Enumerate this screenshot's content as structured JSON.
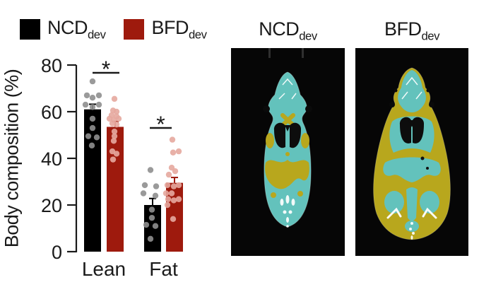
{
  "legend": {
    "items": [
      {
        "label": "NCD",
        "sub": "dev",
        "color": "#000000"
      },
      {
        "label": "BFD",
        "sub": "dev",
        "color": "#9e1a0d"
      }
    ]
  },
  "scan_panels": [
    {
      "title": "NCD",
      "sub": "dev"
    },
    {
      "title": "BFD",
      "sub": "dev"
    }
  ],
  "chart_data": {
    "type": "bar",
    "title": "",
    "xlabel": "",
    "ylabel": "Body composition (%)",
    "ylim": [
      0,
      80
    ],
    "yticks": [
      0,
      20,
      40,
      60,
      80
    ],
    "categories": [
      "Lean",
      "Fat"
    ],
    "grid": false,
    "legend_position": "top-left",
    "series": [
      {
        "name": "NCDdev",
        "bar_color": "#000000",
        "point_color": "#8f8f8f",
        "means": [
          61,
          20
        ],
        "sem": [
          2.2,
          2.8
        ],
        "points": [
          [
            [
              73,
              0
            ],
            [
              67,
              -8
            ],
            [
              66,
              0
            ],
            [
              67,
              9
            ],
            [
              63,
              -10
            ],
            [
              62,
              0
            ],
            [
              63,
              9
            ],
            [
              57,
              0
            ],
            [
              53,
              0
            ],
            [
              49.5,
              -6
            ],
            [
              49,
              6
            ],
            [
              45.5,
              -1
            ]
          ],
          [
            [
              35,
              -3
            ],
            [
              28.5,
              -11
            ],
            [
              28,
              5
            ],
            [
              25,
              -13
            ],
            [
              24,
              4
            ],
            [
              18,
              -1
            ],
            [
              14.5,
              -1
            ],
            [
              11.5,
              -9
            ],
            [
              11,
              4
            ],
            [
              5.5,
              -3
            ]
          ]
        ]
      },
      {
        "name": "BFDdev",
        "bar_color": "#9e1a0d",
        "point_color": "#e6a89e",
        "means": [
          53.5,
          29.5
        ],
        "sem": [
          2.3,
          2.3
        ],
        "points": [
          [
            [
              65.5,
              -1
            ],
            [
              60.5,
              -3
            ],
            [
              60,
              2
            ],
            [
              58.5,
              -5
            ],
            [
              58,
              2
            ],
            [
              57,
              -8
            ],
            [
              56.5,
              -2
            ],
            [
              57,
              5
            ],
            [
              55,
              -4
            ],
            [
              54.5,
              2
            ],
            [
              51.5,
              -1
            ],
            [
              49.5,
              -1
            ],
            [
              47.5,
              -2
            ],
            [
              43,
              -4
            ],
            [
              42,
              2
            ],
            [
              39.5,
              -3
            ]
          ],
          [
            [
              48,
              -3
            ],
            [
              43,
              6
            ],
            [
              42.5,
              -2
            ],
            [
              36,
              -4
            ],
            [
              34.5,
              1
            ],
            [
              33,
              -8
            ],
            [
              28.5,
              -10
            ],
            [
              28,
              -1
            ],
            [
              28.5,
              6
            ],
            [
              25,
              -12
            ],
            [
              25,
              -4
            ],
            [
              22.5,
              -9
            ],
            [
              22,
              -1
            ],
            [
              22.5,
              6
            ],
            [
              20,
              -10
            ],
            [
              14,
              -2
            ]
          ]
        ]
      }
    ],
    "significance": [
      {
        "category": "Lean",
        "label": "*"
      },
      {
        "category": "Fat",
        "label": "*"
      }
    ]
  },
  "colors": {
    "axis": "#1a1a1a",
    "scan_background": "#060606",
    "scan_lean_tissue": "#63c2bc",
    "scan_fat_tissue": "#b8a71d",
    "scan_cavity": "#0d0d0d",
    "scan_bone": "#ffffff"
  }
}
